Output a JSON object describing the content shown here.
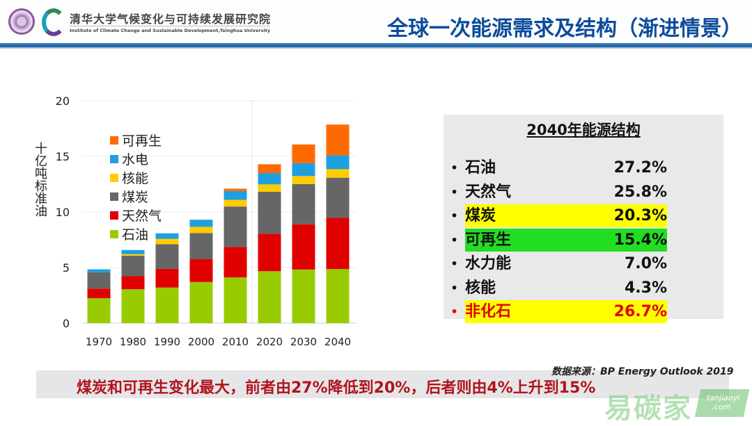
{
  "header": {
    "institute_cn": "清华大学气候变化与可持续发展研究院",
    "institute_en": "Institute of Climate Change and Sustainable Development,Tsinghua University",
    "title": "全球一次能源需求及结构（渐进情景）"
  },
  "chart_data": {
    "type": "bar",
    "stacked": true,
    "ylabel": "十亿吨标准油",
    "ylim": [
      0,
      20
    ],
    "yticks": [
      0,
      5,
      10,
      15,
      20
    ],
    "categories": [
      "1970",
      "1980",
      "1990",
      "2000",
      "2010",
      "2020",
      "2030",
      "2040"
    ],
    "legend_position": "top-left",
    "series": [
      {
        "name": "石油",
        "color": "#99cc00",
        "values": [
          2.24,
          3.05,
          3.2,
          3.7,
          4.11,
          4.67,
          4.82,
          4.86
        ]
      },
      {
        "name": "天然气",
        "color": "#e00000",
        "values": [
          0.87,
          1.17,
          1.68,
          2.05,
          2.74,
          3.37,
          4.07,
          4.61
        ]
      },
      {
        "name": "煤炭",
        "color": "#666666",
        "values": [
          1.46,
          1.84,
          2.22,
          2.35,
          3.64,
          3.78,
          3.61,
          3.61
        ]
      },
      {
        "name": "核能",
        "color": "#ffcc00",
        "values": [
          0,
          0.14,
          0.48,
          0.56,
          0.6,
          0.66,
          0.73,
          0.77
        ]
      },
      {
        "name": "水电",
        "color": "#1ea0e0",
        "values": [
          0.27,
          0.38,
          0.5,
          0.64,
          0.79,
          1.02,
          1.16,
          1.25
        ]
      },
      {
        "name": "可再生",
        "color": "#ff6a00",
        "values": [
          0,
          0,
          0,
          0,
          0.21,
          0.79,
          1.68,
          2.76
        ]
      }
    ]
  },
  "panel": {
    "title": "2040年能源结构",
    "rows": [
      {
        "label": "石油",
        "value": "27.2%",
        "highlight": "",
        "color": "#111"
      },
      {
        "label": "天然气",
        "value": "25.8%",
        "highlight": "",
        "color": "#111"
      },
      {
        "label": "煤炭",
        "value": "20.3%",
        "highlight": "#ffff00",
        "color": "#111"
      },
      {
        "label": "可再生",
        "value": "15.4%",
        "highlight": "#22dd22",
        "color": "#111"
      },
      {
        "label": "水力能",
        "value": "7.0%",
        "highlight": "",
        "color": "#111"
      },
      {
        "label": "核能",
        "value": "4.3%",
        "highlight": "",
        "color": "#111"
      },
      {
        "label": "非化石",
        "value": "26.7%",
        "highlight": "#ffff00",
        "color": "#e00000"
      }
    ],
    "bullet": "•"
  },
  "source": "数据来源：BP Energy Outlook 2019",
  "caption": "煤炭和可再生变化最大，前者由27%降低到20%，后者则由4%上升到15%",
  "watermark": {
    "cn": "易碳家",
    "en": "tanjiaoyi .com"
  }
}
